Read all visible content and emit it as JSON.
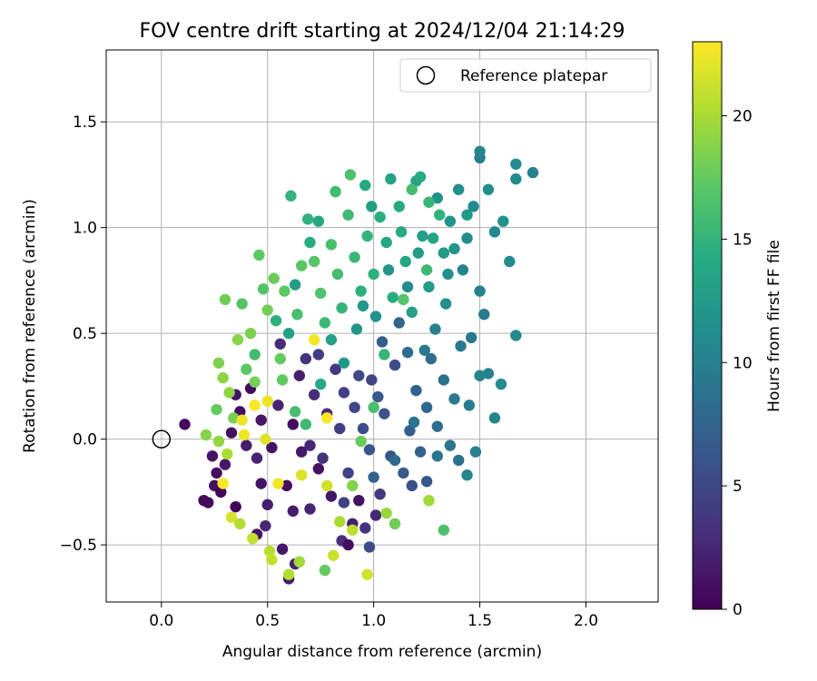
{
  "chart_data": {
    "type": "scatter",
    "title": "FOV centre drift starting at 2024/12/04 21:14:29",
    "xlabel": "Angular distance from reference (arcmin)",
    "ylabel": "Rotation from reference (arcmin)",
    "xlim": [
      -0.26,
      2.34
    ],
    "ylim": [
      -0.77,
      1.84
    ],
    "xticks": [
      0.0,
      0.5,
      1.0,
      1.5,
      2.0
    ],
    "xtick_labels": [
      "0.0",
      "0.5",
      "1.0",
      "1.5",
      "2.0"
    ],
    "yticks": [
      -0.5,
      0.0,
      0.5,
      1.0,
      1.5
    ],
    "ytick_labels": [
      "−0.5",
      "0.0",
      "0.5",
      "1.0",
      "1.5"
    ],
    "grid": true,
    "legend": {
      "placement": "top-right",
      "entries": [
        "Reference platepar"
      ]
    },
    "reference_point": {
      "x": 0.0,
      "y": 0.0,
      "label": "Reference platepar"
    },
    "colorbar": {
      "label": "Hours from first FF file",
      "colormap": "viridis",
      "range": [
        0,
        23
      ],
      "ticks": [
        0,
        5,
        10,
        15,
        20
      ],
      "tick_labels": [
        "0",
        "5",
        "10",
        "15",
        "20"
      ]
    },
    "points": [
      {
        "x": 0.11,
        "y": 0.07,
        "h": 0.5
      },
      {
        "x": 0.2,
        "y": -0.29,
        "h": 0.5
      },
      {
        "x": 0.22,
        "y": -0.3,
        "h": 0.6
      },
      {
        "x": 0.25,
        "y": -0.22,
        "h": 1.0
      },
      {
        "x": 0.26,
        "y": -0.16,
        "h": 0.8
      },
      {
        "x": 0.24,
        "y": -0.08,
        "h": 1.2
      },
      {
        "x": 0.28,
        "y": -0.25,
        "h": 0.4
      },
      {
        "x": 0.3,
        "y": -0.12,
        "h": 1.5
      },
      {
        "x": 0.33,
        "y": 0.03,
        "h": 1.0
      },
      {
        "x": 0.35,
        "y": 0.21,
        "h": 1.3
      },
      {
        "x": 0.37,
        "y": 0.13,
        "h": 0.9
      },
      {
        "x": 0.4,
        "y": -0.03,
        "h": 1.8
      },
      {
        "x": 0.42,
        "y": 0.24,
        "h": 0.7
      },
      {
        "x": 0.45,
        "y": -0.09,
        "h": 2.2
      },
      {
        "x": 0.47,
        "y": 0.09,
        "h": 1.5
      },
      {
        "x": 0.5,
        "y": -0.31,
        "h": 2.0
      },
      {
        "x": 0.52,
        "y": -0.04,
        "h": 1.2
      },
      {
        "x": 0.55,
        "y": 0.16,
        "h": 2.5
      },
      {
        "x": 0.57,
        "y": -0.52,
        "h": 1.5
      },
      {
        "x": 0.6,
        "y": -0.66,
        "h": 1.8
      },
      {
        "x": 0.63,
        "y": -0.59,
        "h": 2.3
      },
      {
        "x": 0.59,
        "y": -0.22,
        "h": 0.9
      },
      {
        "x": 0.45,
        "y": -0.45,
        "h": 1.2
      },
      {
        "x": 0.49,
        "y": -0.41,
        "h": 2.7
      },
      {
        "x": 0.62,
        "y": 0.07,
        "h": 0.7
      },
      {
        "x": 0.66,
        "y": -0.06,
        "h": 1.6
      },
      {
        "x": 0.7,
        "y": -0.33,
        "h": 2.4
      },
      {
        "x": 0.72,
        "y": 0.21,
        "h": 3.0
      },
      {
        "x": 0.74,
        "y": -0.14,
        "h": 1.1
      },
      {
        "x": 0.78,
        "y": 0.12,
        "h": 2.8
      },
      {
        "x": 0.8,
        "y": -0.27,
        "h": 1.4
      },
      {
        "x": 0.85,
        "y": -0.48,
        "h": 3.2
      },
      {
        "x": 0.88,
        "y": -0.5,
        "h": 0.8
      },
      {
        "x": 0.9,
        "y": -0.4,
        "h": 2.1
      },
      {
        "x": 0.93,
        "y": -0.29,
        "h": 1.0
      },
      {
        "x": 0.96,
        "y": -0.42,
        "h": 3.5
      },
      {
        "x": 0.98,
        "y": -0.51,
        "h": 5.2
      },
      {
        "x": 1.01,
        "y": -0.36,
        "h": 2.6
      },
      {
        "x": 1.03,
        "y": -0.26,
        "h": 4.0
      },
      {
        "x": 0.65,
        "y": 0.3,
        "h": 2.0
      },
      {
        "x": 0.68,
        "y": 0.38,
        "h": 3.3
      },
      {
        "x": 0.56,
        "y": 0.45,
        "h": 2.9
      },
      {
        "x": 0.74,
        "y": 0.4,
        "h": 4.2
      },
      {
        "x": 0.82,
        "y": 0.33,
        "h": 3.8
      },
      {
        "x": 0.86,
        "y": 0.22,
        "h": 4.5
      },
      {
        "x": 0.91,
        "y": 0.15,
        "h": 5.0
      },
      {
        "x": 0.95,
        "y": 0.05,
        "h": 5.5
      },
      {
        "x": 0.99,
        "y": 0.28,
        "h": 4.8
      },
      {
        "x": 1.05,
        "y": 0.12,
        "h": 5.8
      },
      {
        "x": 1.08,
        "y": -0.08,
        "h": 6.2
      },
      {
        "x": 1.1,
        "y": 0.35,
        "h": 5.4
      },
      {
        "x": 1.14,
        "y": -0.16,
        "h": 6.6
      },
      {
        "x": 1.17,
        "y": 0.04,
        "h": 6.9
      },
      {
        "x": 1.2,
        "y": 0.23,
        "h": 7.2
      },
      {
        "x": 1.22,
        "y": -0.06,
        "h": 7.5
      },
      {
        "x": 1.25,
        "y": 0.15,
        "h": 7.8
      },
      {
        "x": 1.27,
        "y": 0.38,
        "h": 8.1
      },
      {
        "x": 1.3,
        "y": 0.06,
        "h": 8.4
      },
      {
        "x": 1.33,
        "y": 0.28,
        "h": 8.7
      },
      {
        "x": 1.36,
        "y": -0.03,
        "h": 9.0
      },
      {
        "x": 1.38,
        "y": 0.19,
        "h": 9.2
      },
      {
        "x": 1.41,
        "y": 0.44,
        "h": 9.5
      },
      {
        "x": 1.45,
        "y": 0.16,
        "h": 9.8
      },
      {
        "x": 1.48,
        "y": -0.06,
        "h": 10.1
      },
      {
        "x": 1.5,
        "y": 0.3,
        "h": 10.3
      },
      {
        "x": 1.54,
        "y": 0.31,
        "h": 10.0
      },
      {
        "x": 1.57,
        "y": 0.1,
        "h": 10.6
      },
      {
        "x": 1.6,
        "y": 0.26,
        "h": 11.0
      },
      {
        "x": 1.67,
        "y": 0.49,
        "h": 10.8
      },
      {
        "x": 1.52,
        "y": 0.59,
        "h": 9.6
      },
      {
        "x": 1.5,
        "y": 0.7,
        "h": 10.2
      },
      {
        "x": 1.46,
        "y": 0.48,
        "h": 9.3
      },
      {
        "x": 1.42,
        "y": 0.8,
        "h": 10.5
      },
      {
        "x": 1.44,
        "y": 0.95,
        "h": 11.2
      },
      {
        "x": 1.47,
        "y": 1.1,
        "h": 10.9
      },
      {
        "x": 1.5,
        "y": 1.33,
        "h": 9.8
      },
      {
        "x": 1.5,
        "y": 1.36,
        "h": 10.4
      },
      {
        "x": 1.54,
        "y": 1.18,
        "h": 11.4
      },
      {
        "x": 1.57,
        "y": 0.98,
        "h": 10.7
      },
      {
        "x": 1.61,
        "y": 1.03,
        "h": 11.6
      },
      {
        "x": 1.67,
        "y": 1.23,
        "h": 10.9
      },
      {
        "x": 1.67,
        "y": 1.3,
        "h": 11.1
      },
      {
        "x": 1.75,
        "y": 1.26,
        "h": 10.3
      },
      {
        "x": 1.64,
        "y": 0.84,
        "h": 11.0
      },
      {
        "x": 1.4,
        "y": 1.18,
        "h": 11.5
      },
      {
        "x": 1.36,
        "y": 1.03,
        "h": 12.0
      },
      {
        "x": 1.33,
        "y": 0.88,
        "h": 12.3
      },
      {
        "x": 1.3,
        "y": 1.14,
        "h": 11.8
      },
      {
        "x": 1.26,
        "y": 0.72,
        "h": 12.6
      },
      {
        "x": 1.23,
        "y": 0.96,
        "h": 13.0
      },
      {
        "x": 1.2,
        "y": 1.22,
        "h": 13.4
      },
      {
        "x": 1.18,
        "y": 0.6,
        "h": 12.9
      },
      {
        "x": 1.15,
        "y": 0.84,
        "h": 13.6
      },
      {
        "x": 1.12,
        "y": 1.1,
        "h": 14.0
      },
      {
        "x": 1.09,
        "y": 0.67,
        "h": 14.3
      },
      {
        "x": 1.06,
        "y": 0.93,
        "h": 13.8
      },
      {
        "x": 1.03,
        "y": 1.05,
        "h": 14.5
      },
      {
        "x": 1.0,
        "y": 0.78,
        "h": 14.8
      },
      {
        "x": 0.97,
        "y": 0.96,
        "h": 15.1
      },
      {
        "x": 0.94,
        "y": 0.7,
        "h": 14.6
      },
      {
        "x": 0.91,
        "y": 0.86,
        "h": 15.4
      },
      {
        "x": 0.88,
        "y": 1.06,
        "h": 15.7
      },
      {
        "x": 0.85,
        "y": 0.62,
        "h": 15.2
      },
      {
        "x": 0.83,
        "y": 0.78,
        "h": 16.0
      },
      {
        "x": 0.8,
        "y": 0.92,
        "h": 16.3
      },
      {
        "x": 0.77,
        "y": 0.55,
        "h": 15.5
      },
      {
        "x": 0.75,
        "y": 0.69,
        "h": 16.6
      },
      {
        "x": 0.72,
        "y": 0.84,
        "h": 16.9
      },
      {
        "x": 0.69,
        "y": 1.04,
        "h": 14.9
      },
      {
        "x": 0.64,
        "y": 0.59,
        "h": 16.2
      },
      {
        "x": 0.61,
        "y": 1.15,
        "h": 15.0
      },
      {
        "x": 0.58,
        "y": 0.7,
        "h": 17.2
      },
      {
        "x": 0.56,
        "y": 0.38,
        "h": 17.5
      },
      {
        "x": 0.53,
        "y": 0.76,
        "h": 17.8
      },
      {
        "x": 0.5,
        "y": 0.61,
        "h": 18.1
      },
      {
        "x": 0.46,
        "y": 0.87,
        "h": 17.3
      },
      {
        "x": 0.42,
        "y": 0.5,
        "h": 18.4
      },
      {
        "x": 0.38,
        "y": 0.64,
        "h": 16.8
      },
      {
        "x": 0.3,
        "y": 0.66,
        "h": 18.0
      },
      {
        "x": 0.27,
        "y": 0.36,
        "h": 18.6
      },
      {
        "x": 0.29,
        "y": 0.29,
        "h": 19.0
      },
      {
        "x": 0.34,
        "y": 0.1,
        "h": 18.3
      },
      {
        "x": 0.26,
        "y": 0.14,
        "h": 17.6
      },
      {
        "x": 0.21,
        "y": 0.02,
        "h": 18.8
      },
      {
        "x": 0.27,
        "y": -0.01,
        "h": 19.3
      },
      {
        "x": 0.31,
        "y": -0.07,
        "h": 20.2
      },
      {
        "x": 0.33,
        "y": -0.37,
        "h": 21.6
      },
      {
        "x": 0.37,
        "y": -0.4,
        "h": 20.4
      },
      {
        "x": 0.43,
        "y": -0.47,
        "h": 20.9
      },
      {
        "x": 0.51,
        "y": -0.53,
        "h": 20.6
      },
      {
        "x": 0.52,
        "y": -0.57,
        "h": 21.0
      },
      {
        "x": 0.6,
        "y": -0.64,
        "h": 20.3
      },
      {
        "x": 0.65,
        "y": -0.58,
        "h": 19.8
      },
      {
        "x": 0.77,
        "y": -0.62,
        "h": 17.5
      },
      {
        "x": 0.81,
        "y": -0.55,
        "h": 21.2
      },
      {
        "x": 0.84,
        "y": -0.39,
        "h": 20.1
      },
      {
        "x": 0.9,
        "y": -0.43,
        "h": 20.7
      },
      {
        "x": 0.97,
        "y": -0.64,
        "h": 21.4
      },
      {
        "x": 1.1,
        "y": -0.4,
        "h": 17.9
      },
      {
        "x": 1.06,
        "y": -0.35,
        "h": 19.4
      },
      {
        "x": 1.26,
        "y": -0.29,
        "h": 19.7
      },
      {
        "x": 1.33,
        "y": -0.43,
        "h": 16.4
      },
      {
        "x": 0.29,
        "y": -0.21,
        "h": 22.8
      },
      {
        "x": 0.39,
        "y": 0.02,
        "h": 22.5
      },
      {
        "x": 0.44,
        "y": 0.16,
        "h": 22.9
      },
      {
        "x": 0.5,
        "y": 0.18,
        "h": 22.3
      },
      {
        "x": 0.55,
        "y": -0.21,
        "h": 22.6
      },
      {
        "x": 0.66,
        "y": -0.17,
        "h": 21.8
      },
      {
        "x": 0.72,
        "y": 0.47,
        "h": 22.7
      },
      {
        "x": 0.78,
        "y": 0.1,
        "h": 23.0
      },
      {
        "x": 0.78,
        "y": -0.22,
        "h": 21.5
      },
      {
        "x": 0.49,
        "y": 0.0,
        "h": 22.0
      },
      {
        "x": 0.38,
        "y": 0.09,
        "h": 22.4
      },
      {
        "x": 0.35,
        "y": -0.32,
        "h": 0.3
      },
      {
        "x": 0.47,
        "y": -0.21,
        "h": 1.1
      },
      {
        "x": 0.62,
        "y": -0.34,
        "h": 1.9
      },
      {
        "x": 0.7,
        "y": -0.03,
        "h": 2.6
      },
      {
        "x": 0.76,
        "y": -0.09,
        "h": 3.4
      },
      {
        "x": 0.84,
        "y": 0.05,
        "h": 4.1
      },
      {
        "x": 0.88,
        "y": -0.16,
        "h": 4.7
      },
      {
        "x": 0.93,
        "y": 0.3,
        "h": 5.3
      },
      {
        "x": 0.98,
        "y": -0.05,
        "h": 6.0
      },
      {
        "x": 1.02,
        "y": 0.2,
        "h": 6.4
      },
      {
        "x": 1.04,
        "y": 0.46,
        "h": 7.0
      },
      {
        "x": 1.12,
        "y": 0.55,
        "h": 7.6
      },
      {
        "x": 1.16,
        "y": 0.41,
        "h": 8.2
      },
      {
        "x": 1.19,
        "y": 0.08,
        "h": 8.9
      },
      {
        "x": 1.24,
        "y": 0.42,
        "h": 9.4
      },
      {
        "x": 1.29,
        "y": 0.52,
        "h": 10.0
      },
      {
        "x": 1.34,
        "y": 0.64,
        "h": 11.3
      },
      {
        "x": 1.38,
        "y": 0.9,
        "h": 12.0
      },
      {
        "x": 1.44,
        "y": 1.06,
        "h": 12.4
      },
      {
        "x": 1.22,
        "y": 1.24,
        "h": 14.2
      },
      {
        "x": 1.18,
        "y": 1.18,
        "h": 16.0
      },
      {
        "x": 1.26,
        "y": 1.12,
        "h": 15.3
      },
      {
        "x": 1.08,
        "y": 1.23,
        "h": 13.2
      },
      {
        "x": 0.99,
        "y": 1.1,
        "h": 12.8
      },
      {
        "x": 0.96,
        "y": 1.2,
        "h": 14.1
      },
      {
        "x": 0.89,
        "y": 1.25,
        "h": 16.5
      },
      {
        "x": 0.82,
        "y": 1.17,
        "h": 15.8
      },
      {
        "x": 0.74,
        "y": 1.03,
        "h": 13.7
      },
      {
        "x": 0.7,
        "y": 0.93,
        "h": 14.4
      },
      {
        "x": 0.66,
        "y": 0.82,
        "h": 17.0
      },
      {
        "x": 0.63,
        "y": 0.73,
        "h": 12.7
      },
      {
        "x": 0.6,
        "y": 0.5,
        "h": 13.1
      },
      {
        "x": 0.54,
        "y": 0.56,
        "h": 14.7
      },
      {
        "x": 0.48,
        "y": 0.71,
        "h": 16.7
      },
      {
        "x": 0.44,
        "y": 0.4,
        "h": 15.9
      },
      {
        "x": 0.4,
        "y": 0.33,
        "h": 17.1
      },
      {
        "x": 0.36,
        "y": 0.47,
        "h": 18.9
      },
      {
        "x": 0.32,
        "y": 0.22,
        "h": 19.1
      },
      {
        "x": 0.44,
        "y": 0.27,
        "h": 18.2
      },
      {
        "x": 0.57,
        "y": 0.28,
        "h": 17.4
      },
      {
        "x": 0.63,
        "y": 0.13,
        "h": 16.1
      },
      {
        "x": 0.68,
        "y": 0.07,
        "h": 15.6
      },
      {
        "x": 0.75,
        "y": 0.26,
        "h": 14.0
      },
      {
        "x": 0.8,
        "y": 0.47,
        "h": 13.3
      },
      {
        "x": 0.86,
        "y": 0.36,
        "h": 12.5
      },
      {
        "x": 0.92,
        "y": 0.52,
        "h": 11.9
      },
      {
        "x": 0.95,
        "y": 0.63,
        "h": 12.2
      },
      {
        "x": 1.01,
        "y": 0.58,
        "h": 11.7
      },
      {
        "x": 1.07,
        "y": 0.8,
        "h": 12.1
      },
      {
        "x": 1.13,
        "y": 0.98,
        "h": 13.9
      },
      {
        "x": 1.16,
        "y": 0.72,
        "h": 11.0
      },
      {
        "x": 1.21,
        "y": 0.88,
        "h": 12.6
      },
      {
        "x": 1.28,
        "y": 0.95,
        "h": 13.5
      },
      {
        "x": 1.31,
        "y": 1.06,
        "h": 14.9
      },
      {
        "x": 1.35,
        "y": 0.78,
        "h": 11.6
      },
      {
        "x": 1.25,
        "y": 0.8,
        "h": 15.6
      },
      {
        "x": 1.14,
        "y": 0.66,
        "h": 16.8
      },
      {
        "x": 1.05,
        "y": 0.4,
        "h": 15.2
      },
      {
        "x": 1.0,
        "y": 0.15,
        "h": 16.2
      },
      {
        "x": 0.94,
        "y": -0.01,
        "h": 17.7
      },
      {
        "x": 0.9,
        "y": -0.22,
        "h": 18.7
      },
      {
        "x": 0.86,
        "y": -0.3,
        "h": 4.4
      },
      {
        "x": 1.0,
        "y": -0.18,
        "h": 7.3
      },
      {
        "x": 1.1,
        "y": -0.1,
        "h": 8.0
      },
      {
        "x": 1.18,
        "y": -0.22,
        "h": 5.7
      },
      {
        "x": 1.25,
        "y": -0.2,
        "h": 6.3
      },
      {
        "x": 1.3,
        "y": -0.08,
        "h": 9.1
      },
      {
        "x": 1.4,
        "y": -0.1,
        "h": 8.6
      },
      {
        "x": 1.44,
        "y": -0.17,
        "h": 10.4
      }
    ]
  }
}
